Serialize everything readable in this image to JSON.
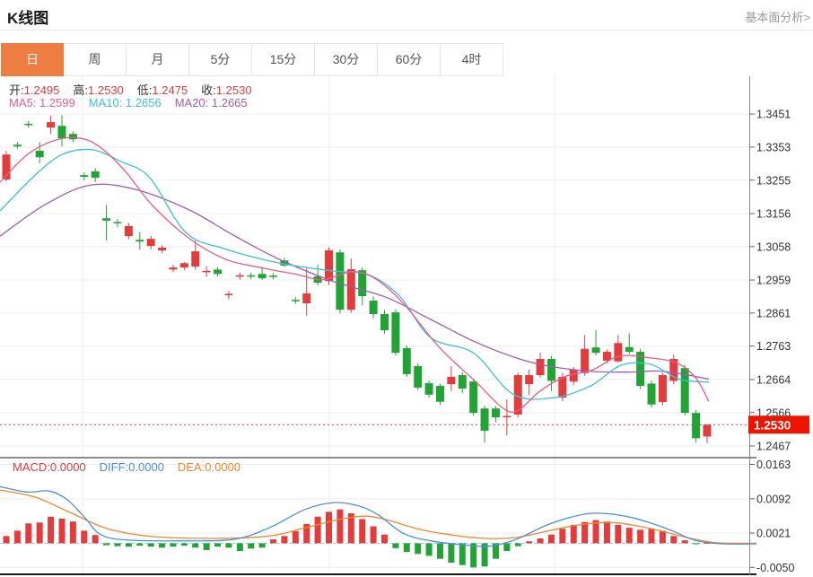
{
  "header": {
    "title": "K线图",
    "link": "基本面分析>"
  },
  "tabs": {
    "items": [
      "日",
      "周",
      "月",
      "5分",
      "15分",
      "30分",
      "60分",
      "4时"
    ],
    "selected_index": 0
  },
  "legend": {
    "ohlc": [
      {
        "name": "open",
        "label": "开:",
        "value": "1.2495"
      },
      {
        "name": "high",
        "label": "高:",
        "value": "1.2530"
      },
      {
        "name": "low",
        "label": "低:",
        "value": "1.2475"
      },
      {
        "name": "close",
        "label": "收:",
        "value": "1.2530"
      }
    ],
    "ma": [
      {
        "name": "ma5",
        "label": "MA5: ",
        "value": "1.2599"
      },
      {
        "name": "ma10",
        "label": "MA10: ",
        "value": "1.2656"
      },
      {
        "name": "ma20",
        "label": "MA20: ",
        "value": "1.2665"
      }
    ],
    "macd": [
      {
        "name": "macd",
        "label": "MACD:",
        "value": "0.0000"
      },
      {
        "name": "diff",
        "label": "DIFF:",
        "value": "0.0000"
      },
      {
        "name": "dea",
        "label": "DEA:",
        "value": "0.0000"
      }
    ]
  },
  "colors": {
    "up": "#e23c3c",
    "down": "#21a335",
    "ma5": "#ee5c86",
    "ma10": "#3bc0da",
    "ma20": "#a05bb5",
    "diff": "#4a90e2",
    "dea": "#f5862c",
    "badge": "#ee1500",
    "tab_active_bg": "#ee7d41",
    "grid": "#ededed",
    "axis": "#8a8a8a",
    "separator": "#1a1a1a",
    "zero_dash": "#8fd4e6",
    "label_text": "#333333"
  },
  "chart_data": {
    "type": "candlestick+macd",
    "title": "K线图",
    "legend_position": "top-left",
    "grid": true,
    "price_axis": {
      "ticks": [
        "1.3451",
        "1.3353",
        "1.3255",
        "1.3156",
        "1.3058",
        "1.2959",
        "1.2861",
        "1.2763",
        "1.2664",
        "1.2566",
        "1.2467"
      ],
      "range_top": 1.3563,
      "range_bottom": 1.2435
    },
    "current_price": {
      "value": "1.2530",
      "price": 1.253
    },
    "candles_ohlc": [
      [
        1.3257,
        1.3342,
        1.3252,
        1.3331
      ],
      [
        1.336,
        1.3368,
        1.3348,
        1.3355
      ],
      [
        1.3422,
        1.343,
        1.341,
        1.3419
      ],
      [
        1.3342,
        1.3368,
        1.3305,
        1.3323
      ],
      [
        1.3411,
        1.3446,
        1.3392,
        1.3427
      ],
      [
        1.3416,
        1.3448,
        1.3355,
        1.3379
      ],
      [
        1.3392,
        1.34,
        1.3368,
        1.3376
      ],
      [
        1.327,
        1.3278,
        1.3255,
        1.3265
      ],
      [
        1.3281,
        1.329,
        1.325,
        1.3262
      ],
      [
        1.3142,
        1.3182,
        1.3076,
        1.3135
      ],
      [
        1.3131,
        1.314,
        1.3115,
        1.3127
      ],
      [
        1.3089,
        1.3128,
        1.308,
        1.3119
      ],
      [
        1.3078,
        1.3102,
        1.3049,
        1.3073
      ],
      [
        1.306,
        1.309,
        1.305,
        1.3081
      ],
      [
        1.3047,
        1.3062,
        1.3038,
        1.3055
      ],
      [
        1.299,
        1.3004,
        1.2982,
        1.2996
      ],
      [
        1.2996,
        1.3012,
        1.2988,
        1.3009
      ],
      [
        1.2999,
        1.3076,
        1.299,
        1.3044
      ],
      [
        1.2983,
        1.3,
        1.2968,
        1.2986
      ],
      [
        1.299,
        1.2998,
        1.297,
        1.2977
      ],
      [
        1.2914,
        1.2926,
        1.2902,
        1.2918
      ],
      [
        1.297,
        1.2981,
        1.296,
        1.2973
      ],
      [
        1.2973,
        1.2981,
        1.2962,
        1.2969
      ],
      [
        1.2977,
        1.2998,
        1.296,
        1.2964
      ],
      [
        1.2972,
        1.2979,
        1.2961,
        1.2968
      ],
      [
        1.3017,
        1.3025,
        1.2998,
        1.3002
      ],
      [
        1.29,
        1.2909,
        1.2888,
        1.2896
      ],
      [
        1.289,
        1.2996,
        1.2853,
        1.2919
      ],
      [
        1.297,
        1.3004,
        1.2943,
        1.2951
      ],
      [
        1.2956,
        1.3056,
        1.2945,
        1.3047
      ],
      [
        1.3041,
        1.305,
        1.286,
        1.2871
      ],
      [
        1.2871,
        1.3023,
        1.2862,
        1.2991
      ],
      [
        1.2988,
        1.2996,
        1.2884,
        1.2911
      ],
      [
        1.2898,
        1.291,
        1.2845,
        1.2858
      ],
      [
        1.2858,
        1.287,
        1.28,
        1.281
      ],
      [
        1.2863,
        1.2872,
        1.2735,
        1.2743
      ],
      [
        1.2757,
        1.2765,
        1.2672,
        1.268
      ],
      [
        1.2704,
        1.2712,
        1.2632,
        1.264
      ],
      [
        1.2653,
        1.2661,
        1.261,
        1.2619
      ],
      [
        1.2645,
        1.2652,
        1.2588,
        1.2598
      ],
      [
        1.265,
        1.2704,
        1.2629,
        1.2672
      ],
      [
        1.2677,
        1.2686,
        1.2624,
        1.2637
      ],
      [
        1.2658,
        1.2666,
        1.2556,
        1.2565
      ],
      [
        1.2578,
        1.2586,
        1.2477,
        1.2512
      ],
      [
        1.2578,
        1.2585,
        1.2538,
        1.2552
      ],
      [
        1.2553,
        1.2605,
        1.2498,
        1.2556
      ],
      [
        1.256,
        1.2684,
        1.2552,
        1.2677
      ],
      [
        1.265,
        1.2694,
        1.2618,
        1.2677
      ],
      [
        1.2677,
        1.2744,
        1.267,
        1.2725
      ],
      [
        1.2725,
        1.2734,
        1.263,
        1.266
      ],
      [
        1.261,
        1.2684,
        1.26,
        1.2672
      ],
      [
        1.2658,
        1.2701,
        1.2648,
        1.2693
      ],
      [
        1.2683,
        1.2796,
        1.2675,
        1.2755
      ],
      [
        1.2759,
        1.2811,
        1.2735,
        1.2743
      ],
      [
        1.272,
        1.2753,
        1.2712,
        1.2746
      ],
      [
        1.2718,
        1.2796,
        1.2714,
        1.2772
      ],
      [
        1.276,
        1.2801,
        1.274,
        1.2746
      ],
      [
        1.2746,
        1.2755,
        1.2636,
        1.2645
      ],
      [
        1.2652,
        1.2661,
        1.2581,
        1.259
      ],
      [
        1.2597,
        1.2684,
        1.2588,
        1.2677
      ],
      [
        1.266,
        1.2738,
        1.265,
        1.2725
      ],
      [
        1.2698,
        1.2707,
        1.2558,
        1.2565
      ],
      [
        1.2565,
        1.2574,
        1.2477,
        1.249
      ],
      [
        1.2495,
        1.253,
        1.2475,
        1.253
      ]
    ],
    "ma5_points": [
      [
        0,
        1.3249
      ],
      [
        30,
        1.333
      ],
      [
        60,
        1.3372
      ],
      [
        88,
        1.338
      ],
      [
        112,
        1.3352
      ],
      [
        140,
        1.328
      ],
      [
        170,
        1.318
      ],
      [
        210,
        1.3084
      ],
      [
        250,
        1.3022
      ],
      [
        290,
        1.2996
      ],
      [
        330,
        1.2976
      ],
      [
        360,
        1.296
      ],
      [
        393,
        1.2984
      ],
      [
        420,
        1.296
      ],
      [
        450,
        1.2888
      ],
      [
        490,
        1.2758
      ],
      [
        530,
        1.2658
      ],
      [
        560,
        1.258
      ],
      [
        577,
        1.2572
      ],
      [
        602,
        1.263
      ],
      [
        630,
        1.2673
      ],
      [
        660,
        1.2692
      ],
      [
        690,
        1.2733
      ],
      [
        725,
        1.2728
      ],
      [
        755,
        1.2712
      ],
      [
        775,
        1.267
      ],
      [
        790,
        1.2599
      ]
    ],
    "ma10_points": [
      [
        0,
        1.3164
      ],
      [
        40,
        1.3272
      ],
      [
        70,
        1.3332
      ],
      [
        103,
        1.3345
      ],
      [
        135,
        1.331
      ],
      [
        167,
        1.3262
      ],
      [
        207,
        1.31
      ],
      [
        250,
        1.3052
      ],
      [
        310,
        1.301
      ],
      [
        370,
        1.2986
      ],
      [
        410,
        1.2975
      ],
      [
        445,
        1.2912
      ],
      [
        480,
        1.2788
      ],
      [
        528,
        1.2742
      ],
      [
        572,
        1.262
      ],
      [
        617,
        1.261
      ],
      [
        658,
        1.2645
      ],
      [
        692,
        1.2706
      ],
      [
        725,
        1.2709
      ],
      [
        757,
        1.2665
      ],
      [
        790,
        1.2656
      ]
    ],
    "ma20_points": [
      [
        0,
        1.3089
      ],
      [
        50,
        1.3182
      ],
      [
        100,
        1.324
      ],
      [
        150,
        1.3228
      ],
      [
        210,
        1.3168
      ],
      [
        260,
        1.3092
      ],
      [
        310,
        1.3022
      ],
      [
        370,
        1.2956
      ],
      [
        430,
        1.2908
      ],
      [
        480,
        1.2842
      ],
      [
        530,
        1.2775
      ],
      [
        580,
        1.2724
      ],
      [
        620,
        1.27
      ],
      [
        660,
        1.2688
      ],
      [
        700,
        1.2686
      ],
      [
        735,
        1.2689
      ],
      [
        765,
        1.2678
      ],
      [
        790,
        1.2665
      ]
    ],
    "macd": {
      "ticks": [
        "0.0163",
        "0.0092",
        "0.0021",
        "-0.0050"
      ],
      "range_top": 0.0177,
      "range_bottom": -0.0066,
      "histogram": [
        0.0015,
        0.0026,
        0.0041,
        0.0043,
        0.0055,
        0.0051,
        0.0045,
        0.0026,
        0.0017,
        -0.0004,
        -0.0006,
        -0.0007,
        -0.0005,
        -0.0007,
        -0.0009,
        -0.0007,
        -0.0005,
        -0.0009,
        -0.0014,
        -0.0007,
        -0.0009,
        -0.0016,
        -0.0011,
        -0.0009,
        0.0008,
        0.0015,
        0.0025,
        0.004,
        0.0055,
        0.0065,
        0.007,
        0.0062,
        0.005,
        0.0035,
        0.0018,
        -0.001,
        -0.0018,
        -0.0022,
        -0.0026,
        -0.0032,
        -0.004,
        -0.0045,
        -0.005,
        -0.0048,
        -0.0032,
        -0.0016,
        -0.0006,
        0.0004,
        0.001,
        0.0018,
        0.003,
        0.0038,
        0.0044,
        0.0048,
        0.0045,
        0.0038,
        0.0032,
        0.0028,
        0.003,
        0.0026,
        0.0015,
        0.0006,
        -0.0002,
        0.0001
      ],
      "diff_points": [
        [
          0,
          0.0117
        ],
        [
          30,
          0.0106
        ],
        [
          55,
          0.0108
        ],
        [
          75,
          0.009
        ],
        [
          95,
          0.0052
        ],
        [
          112,
          0.0018
        ],
        [
          140,
          0.0007
        ],
        [
          200,
          0.0005
        ],
        [
          260,
          0.0008
        ],
        [
          300,
          0.0032
        ],
        [
          340,
          0.007
        ],
        [
          372,
          0.0084
        ],
        [
          400,
          0.0077
        ],
        [
          422,
          0.0058
        ],
        [
          450,
          0.002
        ],
        [
          480,
          0.0005
        ],
        [
          515,
          -0.0003
        ],
        [
          545,
          -0.0006
        ],
        [
          575,
          0.0008
        ],
        [
          610,
          0.0038
        ],
        [
          645,
          0.0058
        ],
        [
          670,
          0.0062
        ],
        [
          700,
          0.0055
        ],
        [
          725,
          0.0042
        ],
        [
          750,
          0.0025
        ],
        [
          775,
          0.0006
        ],
        [
          805,
          -0.0001
        ],
        [
          843,
          -0.0001
        ]
      ],
      "dea_points": [
        [
          0,
          0.011
        ],
        [
          40,
          0.0095
        ],
        [
          80,
          0.0062
        ],
        [
          120,
          0.003
        ],
        [
          170,
          0.0014
        ],
        [
          240,
          0.001
        ],
        [
          300,
          0.0015
        ],
        [
          340,
          0.0032
        ],
        [
          380,
          0.005
        ],
        [
          408,
          0.0056
        ],
        [
          432,
          0.0048
        ],
        [
          465,
          0.003
        ],
        [
          500,
          0.0018
        ],
        [
          540,
          0.001
        ],
        [
          575,
          0.0012
        ],
        [
          610,
          0.0025
        ],
        [
          645,
          0.0038
        ],
        [
          680,
          0.0043
        ],
        [
          710,
          0.0036
        ],
        [
          740,
          0.0024
        ],
        [
          770,
          0.001
        ],
        [
          800,
          0.0001
        ],
        [
          843,
          0.0
        ]
      ]
    }
  }
}
